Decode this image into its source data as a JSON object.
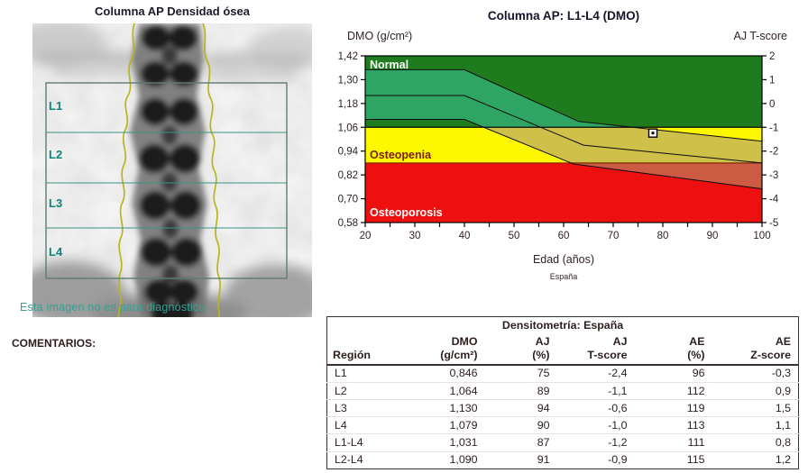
{
  "left_panel": {
    "title": "Columna AP Densidad ósea",
    "roi_labels": [
      "L1",
      "L2",
      "L3",
      "L4"
    ],
    "disclaimer": "Esta imagen no es para diagnóstico",
    "comments_label": "COMENTARIOS:"
  },
  "chart_data": {
    "type": "area",
    "title": "Columna AP: L1-L4 (DMO)",
    "ylabel_left": "DMO (g/cm²)",
    "ylabel_right": "AJ T-score",
    "xlabel": "Edad (años)",
    "x_sublabel": "España",
    "xlim": [
      20,
      100
    ],
    "x_major_ticks": [
      20,
      30,
      40,
      50,
      60,
      70,
      80,
      90,
      100
    ],
    "x_minor_tick_step": 5,
    "ylim_dmo": [
      0.58,
      1.42
    ],
    "y_ticks_dmo": [
      "1,42",
      "1,30",
      "1,18",
      "1,06",
      "0,94",
      "0,82",
      "0,70",
      "0,58"
    ],
    "ylim_tscore": [
      -5,
      2
    ],
    "y_ticks_tscore": [
      2,
      1,
      0,
      -1,
      -2,
      -3,
      -4,
      -5
    ],
    "legend_position": "none",
    "grid": false,
    "zones": [
      {
        "label": "Normal",
        "dmo_range": [
          1.06,
          1.42
        ],
        "color": "#1e7c1e",
        "label_color": "#ffffff",
        "band_color": "#2fa564"
      },
      {
        "label": "Osteopenia",
        "dmo_range": [
          0.88,
          1.06
        ],
        "color": "#fdf800",
        "label_color": "#7a2000",
        "band_color": "#cfc049"
      },
      {
        "label": "Osteoporosis",
        "dmo_range": [
          0.58,
          0.88
        ],
        "color": "#ee0f0f",
        "label_color": "#ffffff",
        "band_color": "#cd5a43"
      }
    ],
    "zone_boundary_line_colors": [
      "#0a0a0a",
      "#7a1e00"
    ],
    "reference_band": {
      "upper": [
        [
          20,
          1.35
        ],
        [
          40,
          1.35
        ],
        [
          63,
          1.09
        ],
        [
          100,
          0.99
        ]
      ],
      "middle": [
        [
          20,
          1.22
        ],
        [
          40,
          1.22
        ],
        [
          64,
          0.97
        ],
        [
          100,
          0.88
        ]
      ],
      "lower": [
        [
          20,
          1.1
        ],
        [
          40,
          1.1
        ],
        [
          62,
          0.875
        ],
        [
          100,
          0.75
        ]
      ]
    },
    "patient_point": {
      "age": 78,
      "dmo": 1.031
    }
  },
  "table": {
    "title": "Densitometría: España",
    "columns": [
      {
        "line1": "Región",
        "line2": ""
      },
      {
        "line1": "DMO",
        "line2": "(g/cm²)"
      },
      {
        "line1": "AJ",
        "line2": "(%)"
      },
      {
        "line1": "AJ",
        "line2": "T-score"
      },
      {
        "line1": "AE",
        "line2": "(%)"
      },
      {
        "line1": "AE",
        "line2": "Z-score"
      }
    ],
    "rows": [
      [
        "L1",
        "0,846",
        "75",
        "-2,4",
        "96",
        "-0,3"
      ],
      [
        "L2",
        "1,064",
        "89",
        "-1,1",
        "112",
        "0,9"
      ],
      [
        "L3",
        "1,130",
        "94",
        "-0,6",
        "119",
        "1,5"
      ],
      [
        "L4",
        "1,079",
        "90",
        "-1,0",
        "113",
        "1,1"
      ],
      [
        "L1-L4",
        "1,031",
        "87",
        "-1,2",
        "111",
        "0,8"
      ],
      [
        "L2-L4",
        "1,090",
        "91",
        "-0,9",
        "115",
        "1,2"
      ]
    ]
  }
}
